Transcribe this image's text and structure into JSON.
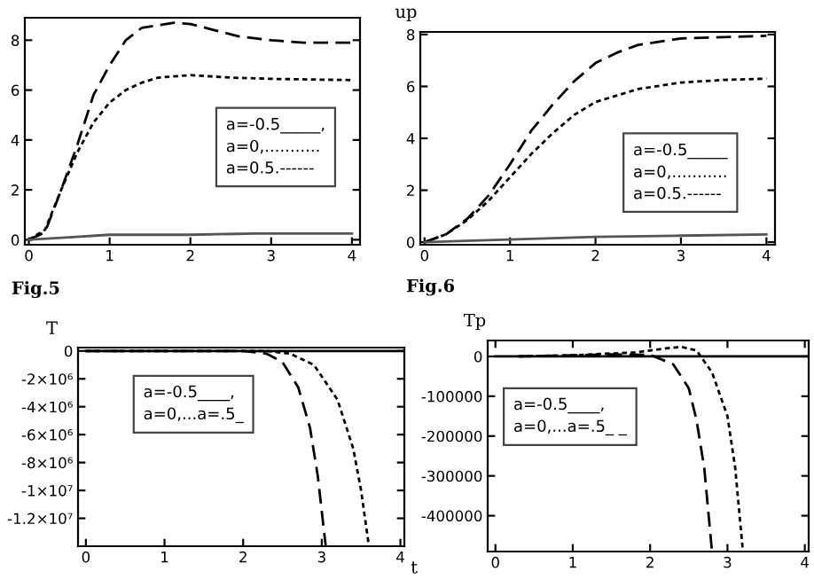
{
  "chart_data": [
    {
      "type": "line",
      "xlim": [
        -0.05,
        4.1
      ],
      "ylim": [
        -0.2,
        8.9
      ],
      "xticks": [
        0,
        1,
        2,
        3,
        4
      ],
      "yticks": [
        0,
        2,
        4,
        6,
        8
      ],
      "grid": false,
      "legend": false,
      "series": [
        {
          "color": "#000000",
          "line_style": "dashed",
          "x": [
            0,
            0.2,
            0.4,
            0.6,
            0.8,
            1,
            1.2,
            1.4,
            1.6,
            1.8,
            2,
            2.3,
            2.6,
            3,
            3.4,
            4
          ],
          "values": [
            0,
            0.3,
            2,
            3.8,
            5.8,
            7,
            8,
            8.5,
            8.6,
            8.7,
            8.65,
            8.4,
            8.15,
            8,
            7.9,
            7.9
          ]
        },
        {
          "color": "#000000",
          "line_style": "dotted",
          "x": [
            0,
            0.2,
            0.4,
            0.6,
            0.8,
            1,
            1.2,
            1.4,
            1.6,
            2,
            2.5,
            3,
            4
          ],
          "values": [
            0,
            0.4,
            2,
            3.5,
            4.7,
            5.5,
            6,
            6.3,
            6.5,
            6.6,
            6.5,
            6.45,
            6.4
          ]
        },
        {
          "color": "#555555",
          "line_style": "solid",
          "x": [
            0,
            0.5,
            1,
            2,
            2.8,
            4
          ],
          "values": [
            0,
            0.1,
            0.2,
            0.2,
            0.25,
            0.25
          ]
        }
      ],
      "annotations": [
        "a=-0.5_____,\na=0,...........\na=0.5.------",
        "Fig.5"
      ]
    },
    {
      "type": "line",
      "ylabel": "up",
      "xlim": [
        -0.05,
        4.1
      ],
      "ylim": [
        -0.1,
        8.1
      ],
      "xticks": [
        0,
        1,
        2,
        3,
        4
      ],
      "yticks": [
        0,
        2,
        4,
        6,
        8
      ],
      "grid": false,
      "legend": false,
      "series": [
        {
          "color": "#000000",
          "line_style": "dashed",
          "x": [
            0,
            0.25,
            0.5,
            0.75,
            1,
            1.25,
            1.5,
            1.75,
            2,
            2.25,
            2.5,
            3,
            3.5,
            4
          ],
          "values": [
            0,
            0.3,
            0.9,
            1.8,
            3,
            4.3,
            5.3,
            6.2,
            6.9,
            7.3,
            7.6,
            7.85,
            7.9,
            7.95
          ]
        },
        {
          "color": "#000000",
          "line_style": "dotted",
          "x": [
            0,
            0.25,
            0.5,
            0.75,
            1,
            1.25,
            1.5,
            1.75,
            2,
            2.5,
            3,
            3.5,
            4
          ],
          "values": [
            0,
            0.3,
            0.85,
            1.6,
            2.5,
            3.4,
            4.2,
            4.9,
            5.4,
            5.9,
            6.15,
            6.25,
            6.3
          ]
        },
        {
          "color": "#555555",
          "line_style": "solid",
          "x": [
            0,
            1,
            2,
            3,
            4
          ],
          "values": [
            0,
            0.1,
            0.2,
            0.25,
            0.3
          ]
        }
      ],
      "annotations": [
        "a=-0.5_____\na=0,...........\na=0.5.------",
        "Fig.6"
      ]
    },
    {
      "type": "line",
      "ylabel": "T",
      "xlabel": "t",
      "xlim": [
        -0.1,
        4.05
      ],
      "ylim": [
        -14000000,
        240000
      ],
      "xticks": [
        0,
        1,
        2,
        3,
        4
      ],
      "yticks": [
        0,
        {
          "value": -2000000,
          "label": "-2×10⁶"
        },
        {
          "value": -4000000,
          "label": "-4×10⁶"
        },
        {
          "value": -6000000,
          "label": "-6×10⁶"
        },
        {
          "value": -8000000,
          "label": "-8×10⁶"
        },
        {
          "value": -10000000,
          "label": "-1×10⁷"
        },
        {
          "value": -12000000,
          "label": "-1.2×10⁷"
        }
      ],
      "grid": false,
      "legend": false,
      "series": [
        {
          "color": "#000000",
          "line_style": "solid",
          "x": [
            0,
            4.05
          ],
          "values": [
            0,
            0
          ]
        },
        {
          "color": "#000000",
          "line_style": "dashed",
          "x": [
            0,
            2,
            2.3,
            2.5,
            2.7,
            2.85,
            2.95,
            3.05
          ],
          "values": [
            0,
            0,
            -200000,
            -800000,
            -2600000,
            -5500000,
            -9000000,
            -14000000
          ]
        },
        {
          "color": "#000000",
          "line_style": "dotted",
          "x": [
            0,
            2.3,
            2.6,
            2.9,
            3.2,
            3.4,
            3.5,
            3.6
          ],
          "values": [
            0,
            0,
            -200000,
            -1000000,
            -3500000,
            -7000000,
            -10000000,
            -14000000
          ]
        }
      ],
      "annotations": [
        "a=-0.5____,\na=0,...a=.5_"
      ]
    },
    {
      "type": "line",
      "ylabel": "Tp",
      "xlim": [
        -0.1,
        4.05
      ],
      "ylim": [
        -490000,
        40000
      ],
      "xticks": [
        0,
        1,
        2,
        3,
        4
      ],
      "yticks": [
        0,
        -100000,
        -200000,
        -300000,
        -400000
      ],
      "grid": false,
      "legend": false,
      "series": [
        {
          "color": "#000000",
          "line_style": "solid",
          "x": [
            0,
            4.05
          ],
          "values": [
            0,
            0
          ]
        },
        {
          "color": "#000000",
          "line_style": "dashed",
          "x": [
            0.3,
            1.5,
            2,
            2.3,
            2.5,
            2.6,
            2.7,
            2.8
          ],
          "values": [
            0,
            5000,
            4000,
            -20000,
            -80000,
            -160000,
            -280000,
            -490000
          ]
        },
        {
          "color": "#000000",
          "line_style": "dotted",
          "x": [
            0.3,
            1,
            1.8,
            2.2,
            2.4,
            2.6,
            2.8,
            3,
            3.1,
            3.2
          ],
          "values": [
            0,
            3000,
            10000,
            20000,
            24000,
            15000,
            -40000,
            -150000,
            -280000,
            -490000
          ]
        }
      ],
      "annotations": [
        "a=-0.5____,\na=0,...a=.5_ _"
      ]
    }
  ]
}
